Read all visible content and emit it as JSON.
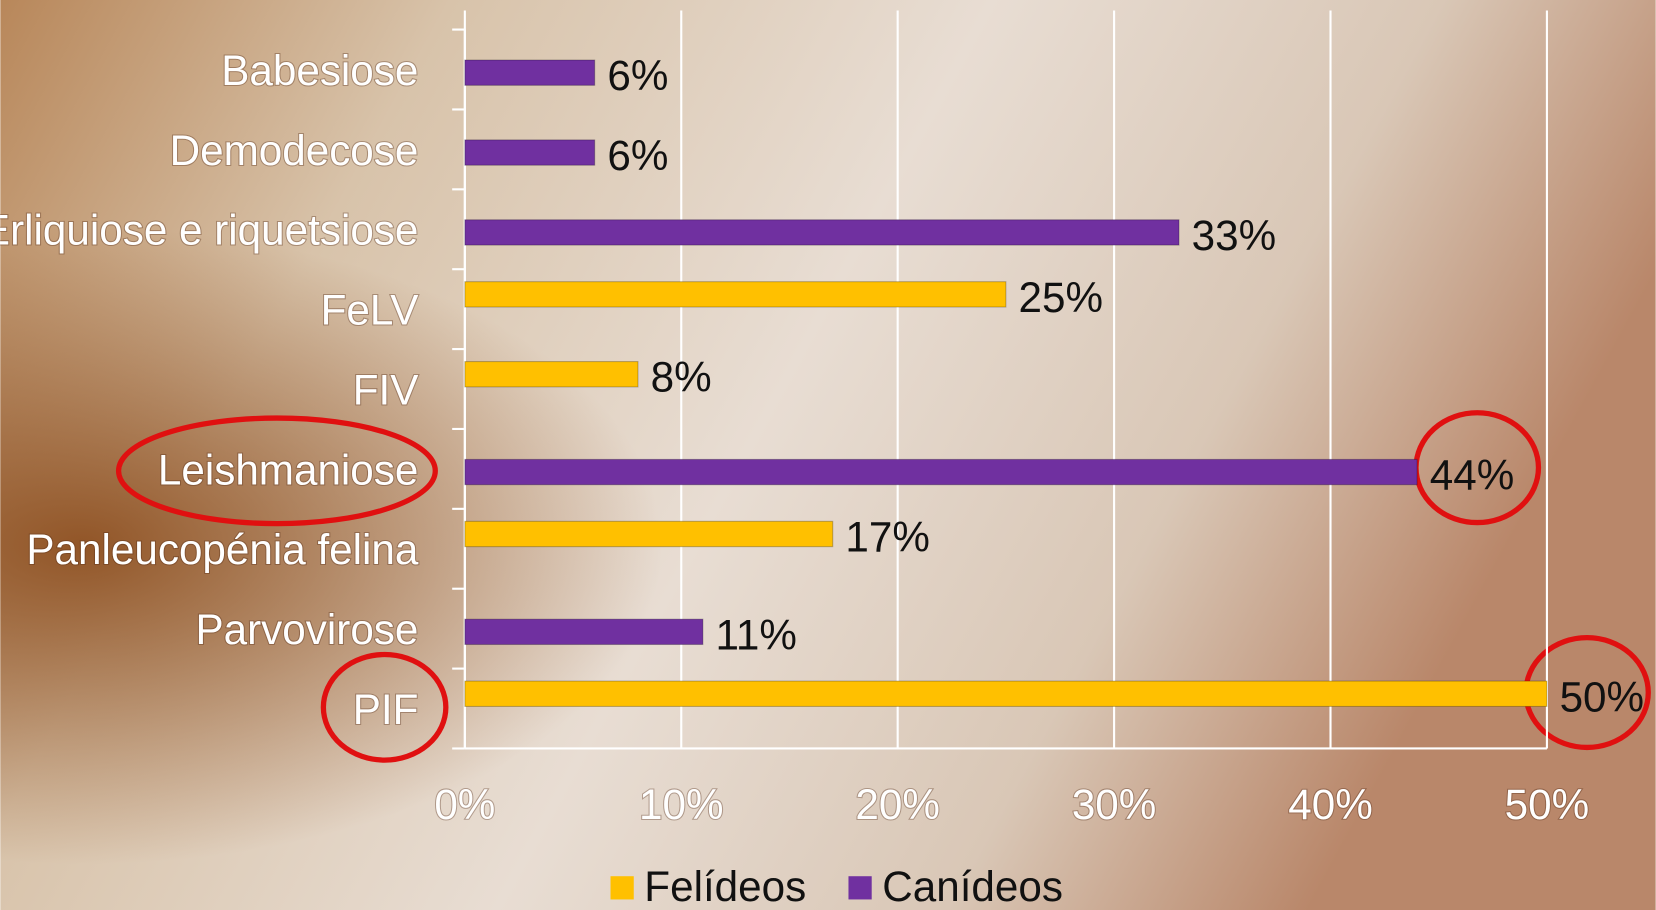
{
  "chart_data": {
    "type": "bar",
    "orientation": "horizontal",
    "categories": [
      "Babesiose",
      "Demodecose",
      "Erliquiose e riquetsiose",
      "FeLV",
      "FIV",
      "Leishmaniose",
      "Panleucopénia felina",
      "Parvovirose",
      "PIF"
    ],
    "series": [
      {
        "name": "Felídeos",
        "color": "#ffc000",
        "values": [
          null,
          null,
          null,
          25,
          8,
          null,
          17,
          null,
          50
        ],
        "value_labels": [
          null,
          null,
          null,
          "25%",
          "8%",
          null,
          "17%",
          null,
          "50%"
        ]
      },
      {
        "name": "Canídeos",
        "color": "#7030a0",
        "values": [
          6,
          6,
          33,
          null,
          null,
          44,
          null,
          11,
          null
        ],
        "value_labels": [
          "6%",
          "6%",
          "33%",
          null,
          null,
          "44%",
          null,
          "11%",
          null
        ]
      }
    ],
    "xlim": [
      0,
      50
    ],
    "xticks": [
      {
        "value": 0,
        "label": "0%"
      },
      {
        "value": 10,
        "label": "10%"
      },
      {
        "value": 20,
        "label": "20%"
      },
      {
        "value": 30,
        "label": "30%"
      },
      {
        "value": 40,
        "label": "40%"
      },
      {
        "value": 50,
        "label": "50%"
      }
    ],
    "grid": true,
    "legend": "bottom"
  }
}
